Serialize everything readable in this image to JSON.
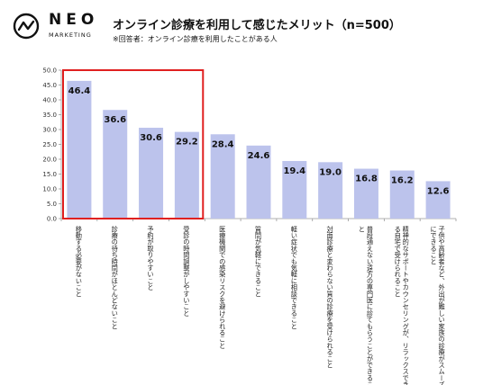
{
  "brand": {
    "name": "NEO",
    "sub": "MARKETING"
  },
  "header": {
    "title": "オンライン診療を利用して感じたメリット（n=500）",
    "note": "※回答者：オンライン診療を利用したことがある人"
  },
  "chart_data": {
    "type": "bar",
    "categories": [
      "移動する必要がないこと",
      "診療の待ち時間がほとんどないこと",
      "予約が取りやすいこと",
      "受診の時間調整がしやすいこと",
      "医療機関での感染リスクを避けられること",
      "質問が気軽にできること",
      "軽い症状でも気軽に相談できること",
      "対面診療と変わらない質の診療を受けられること",
      "普段通えない遠方の専門医に診てもらうことができること",
      "精神的なサポートやカウンセリングが、リラックスできる自宅で受けられること",
      "子供や高齢者など、外出が難しい家族の診療がスムーズにできること"
    ],
    "values": [
      46.4,
      36.6,
      30.6,
      29.2,
      28.4,
      24.6,
      19.4,
      19.0,
      16.8,
      16.2,
      12.6
    ],
    "ylim": [
      0,
      50
    ],
    "yticks": [
      "0.0",
      "5.0",
      "10.0",
      "15.0",
      "20.0",
      "25.0",
      "30.0",
      "35.0",
      "40.0",
      "45.0",
      "50.0"
    ],
    "highlight": {
      "first": 0,
      "last": 3,
      "color": "#e02020"
    },
    "bar_color": "#bcc3ec",
    "grid": false
  }
}
